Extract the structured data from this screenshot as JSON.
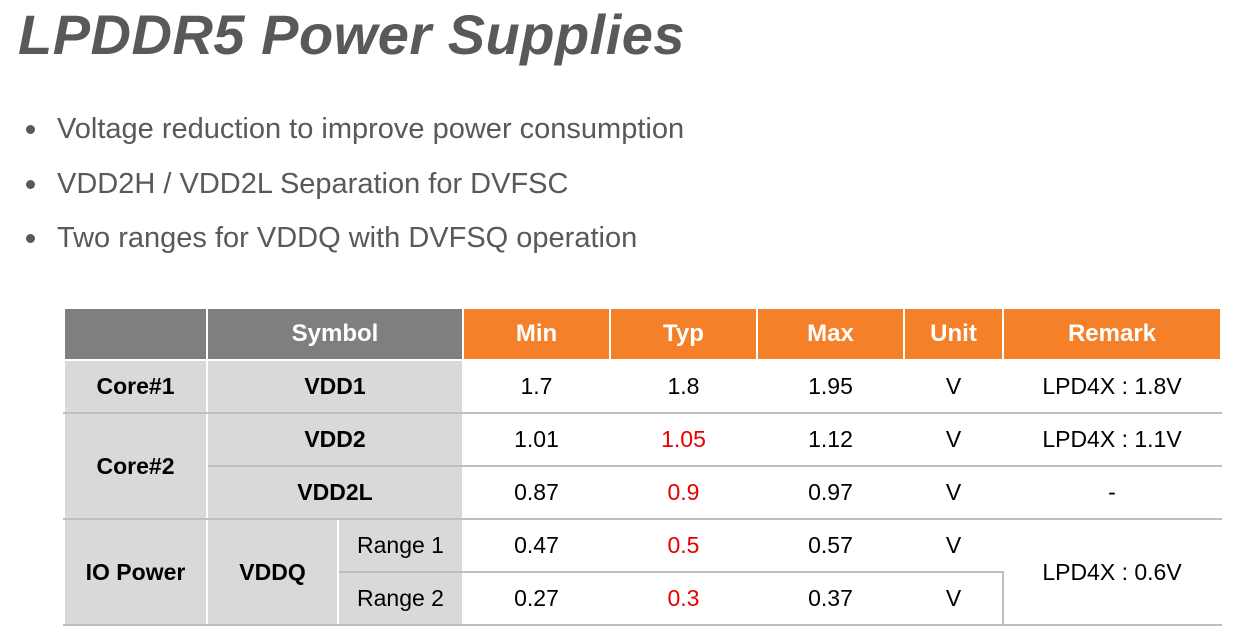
{
  "slide": {
    "title": "LPDDR5 Power Supplies",
    "bullets": [
      "Voltage reduction to improve power consumption",
      "VDD2H / VDD2L Separation for DVFSC",
      "Two ranges for VDDQ with DVFSQ operation"
    ]
  },
  "table": {
    "headers": {
      "symbol": "Symbol",
      "min": "Min",
      "typ": "Typ",
      "max": "Max",
      "unit": "Unit",
      "remark": "Remark"
    },
    "groups": {
      "core1": "Core#1",
      "core2": "Core#2",
      "io": "IO Power"
    },
    "rows": [
      {
        "symbol": "VDD1",
        "min": "1.7",
        "typ": "1.8",
        "max": "1.95",
        "unit": "V",
        "remark": "LPD4X : 1.8V"
      },
      {
        "symbol": "VDD2",
        "min": "1.01",
        "typ": "1.05",
        "max": "1.12",
        "unit": "V",
        "remark": "LPD4X : 1.1V"
      },
      {
        "symbol": "VDD2L",
        "min": "0.87",
        "typ": "0.9",
        "max": "0.97",
        "unit": "V",
        "remark": "-"
      },
      {
        "symbol": "VDDQ",
        "sub": "Range 1",
        "min": "0.47",
        "typ": "0.5",
        "max": "0.57",
        "unit": "V",
        "remark": "LPD4X : 0.6V"
      },
      {
        "sub": "Range 2",
        "min": "0.27",
        "typ": "0.3",
        "max": "0.37",
        "unit": "V"
      }
    ],
    "colors": {
      "header_gray": "#7f7f7f",
      "header_orange": "#f4802a",
      "label_gray": "#d9d9d9",
      "highlight_red": "#e60000",
      "text_gray": "#595959"
    }
  }
}
